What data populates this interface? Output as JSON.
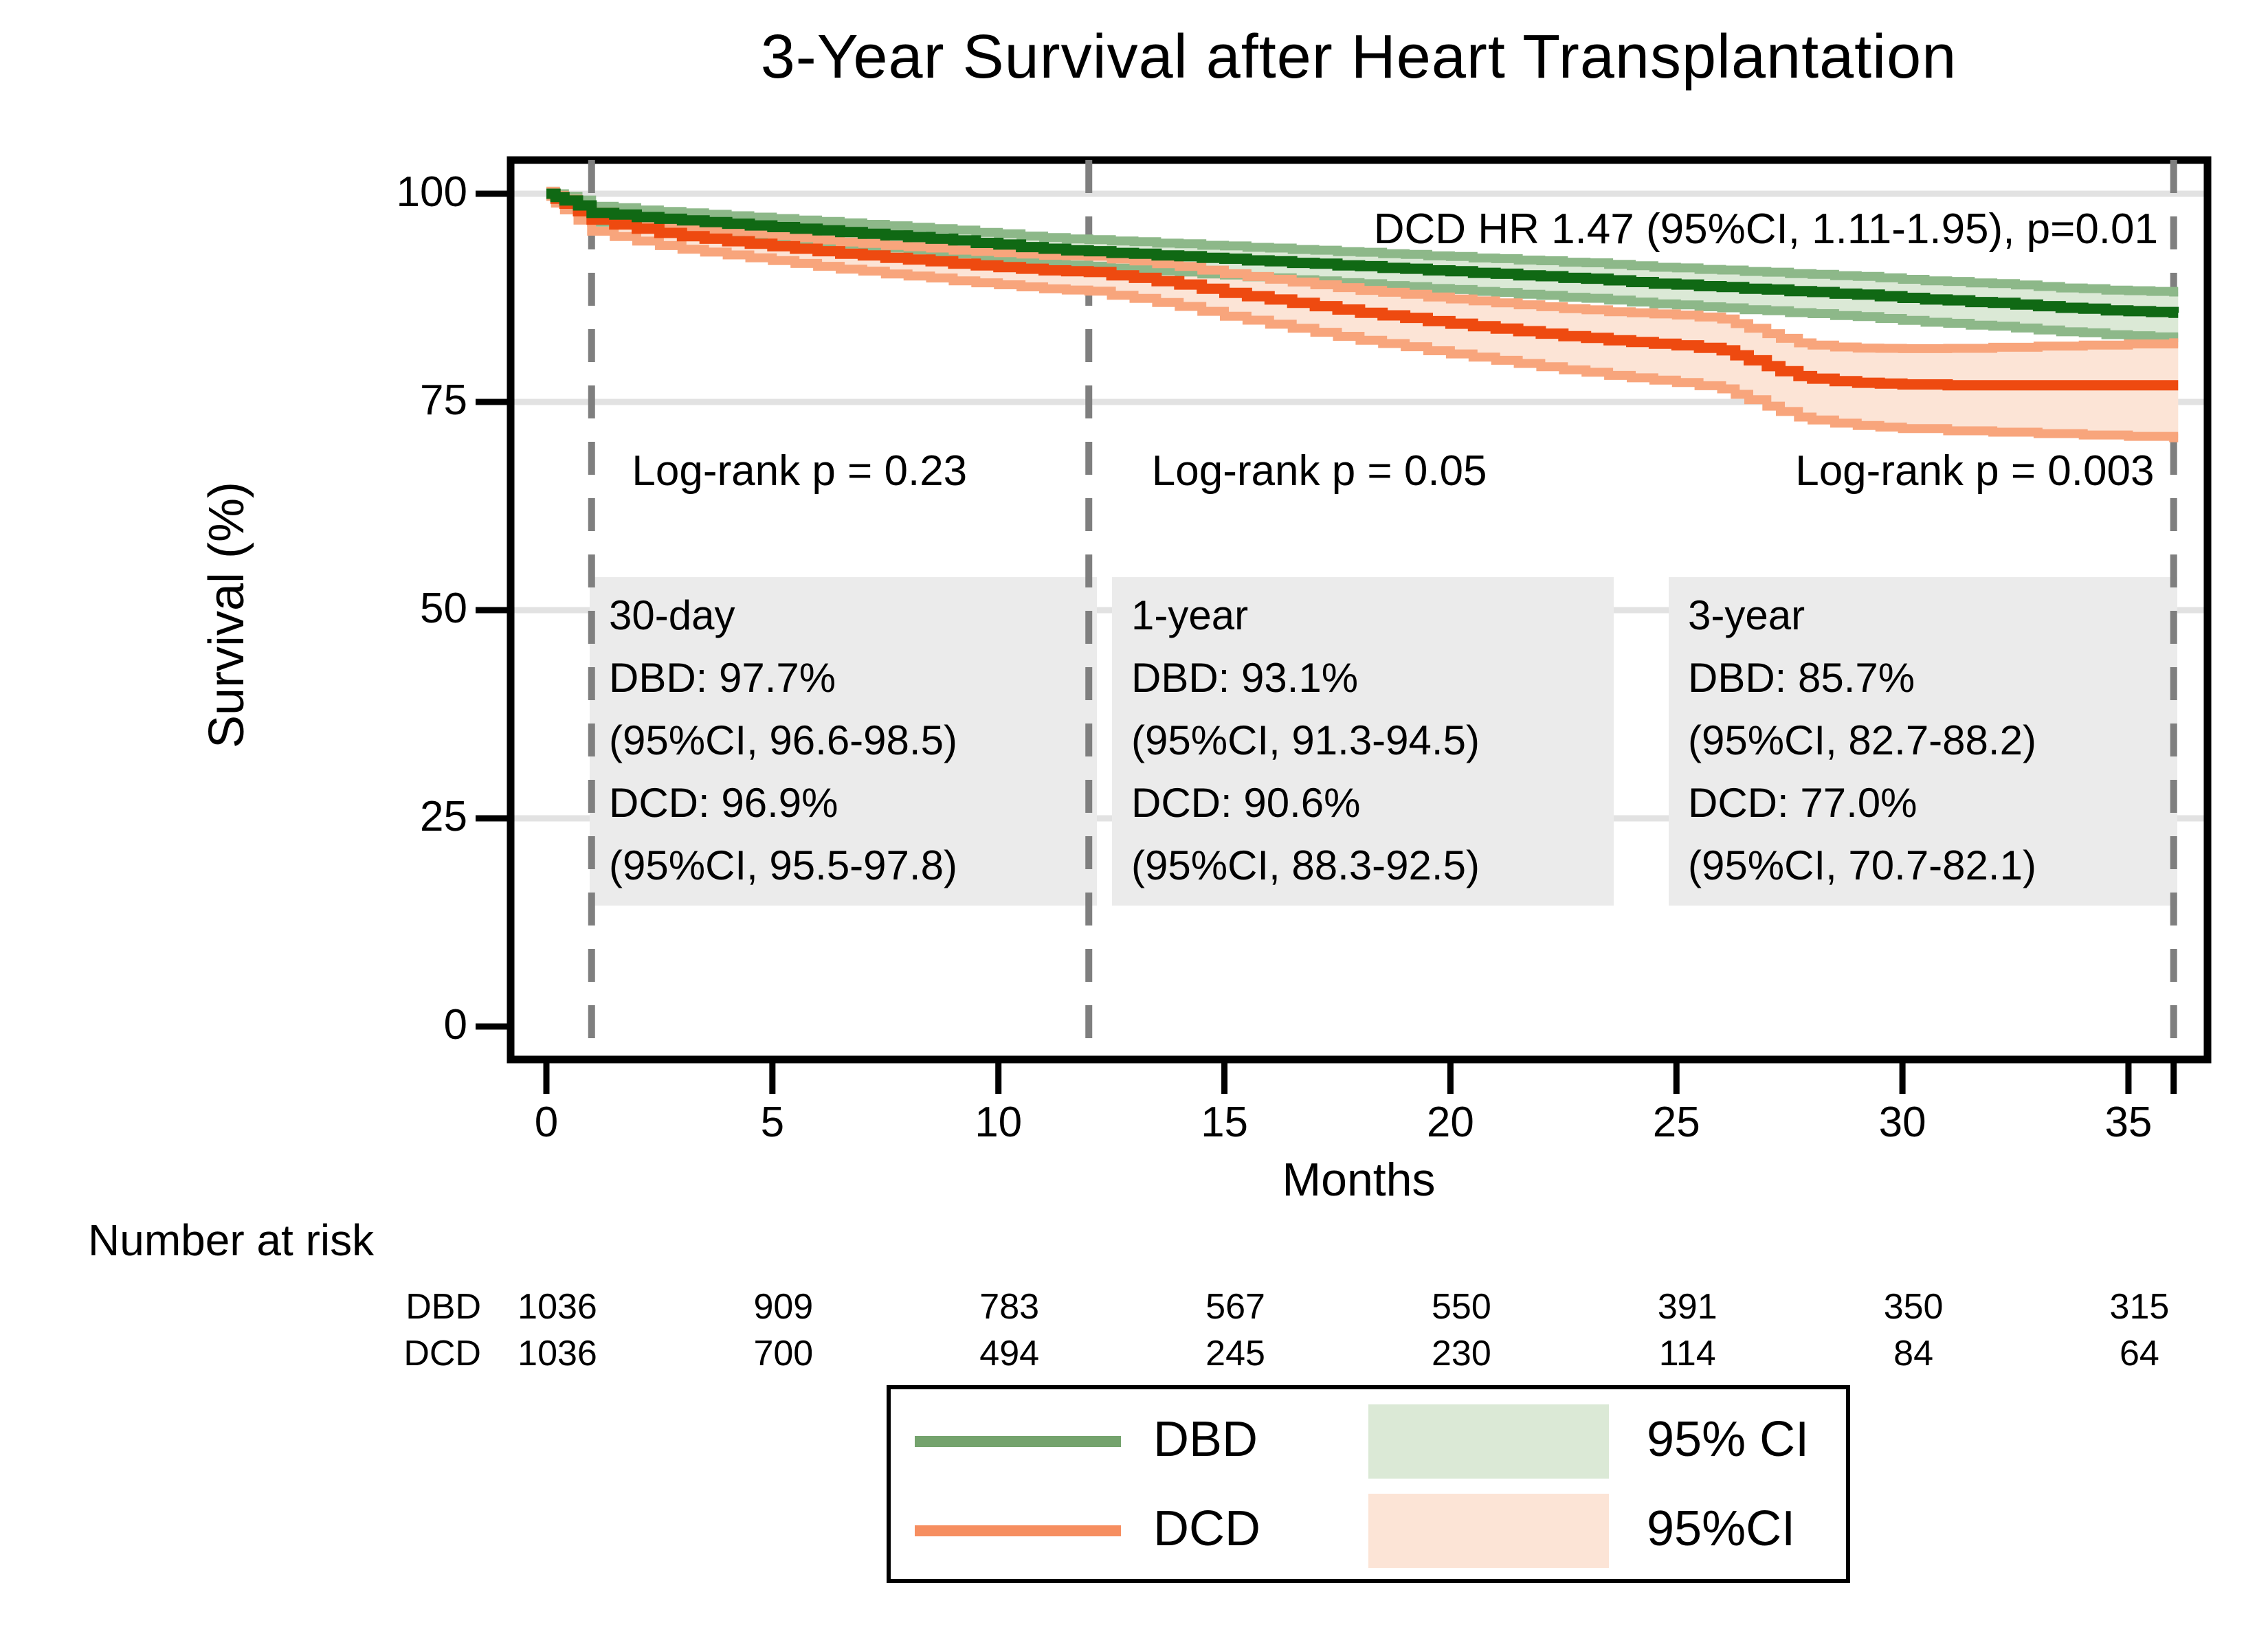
{
  "title": "3-Year Survival after Heart Transplantation",
  "hr_annotation": "DCD HR 1.47 (95%CI, 1.11-1.95), p=0.01",
  "log_rank_labels": [
    {
      "text": "Log-rank p = 0.23",
      "month_center": 5.6
    },
    {
      "text": "Log-rank p = 0.05",
      "month_center": 17.1
    },
    {
      "text": "Log-rank p = 0.003",
      "month_center": 31.6
    }
  ],
  "stat_boxes": [
    {
      "heading": "30-day",
      "lines": [
        "DBD: 97.7%",
        "(95%CI, 96.6-98.5)",
        "DCD: 96.9%",
        "(95%CI, 95.5-97.8)"
      ]
    },
    {
      "heading": "1-year",
      "lines": [
        "DBD: 93.1%",
        "(95%CI, 91.3-94.5)",
        "DCD: 90.6%",
        "(95%CI, 88.3-92.5)"
      ]
    },
    {
      "heading": "3-year",
      "lines": [
        "DBD: 85.7%",
        "(95%CI, 82.7-88.2)",
        "DCD: 77.0%",
        "(95%CI, 70.7-82.1)"
      ]
    }
  ],
  "axes": {
    "y_label": "Survival (%)",
    "y_ticks": [
      100,
      75,
      50,
      25,
      0
    ],
    "x_label": "Months",
    "x_ticks": [
      0,
      5,
      10,
      15,
      20,
      25,
      30,
      35
    ],
    "extra_unlabeled_x_tick": 36,
    "grid_y_values": [
      100,
      75,
      50,
      25
    ]
  },
  "dashed_reference_months": [
    1,
    12,
    36
  ],
  "number_at_risk": {
    "heading": "Number at risk",
    "rows": [
      {
        "label": "DBD",
        "values": [
          "1036",
          "909",
          "783",
          "567",
          "550",
          "391",
          "350",
          "315"
        ]
      },
      {
        "label": "DCD",
        "values": [
          "1036",
          "700",
          "494",
          "245",
          "230",
          "114",
          "84",
          "64"
        ]
      }
    ]
  },
  "legend": {
    "rows": [
      {
        "series_label": "DBD",
        "line_color": "#74a36d",
        "ci_label": "95% CI",
        "ci_fill": "#dbe9d6"
      },
      {
        "series_label": "DCD",
        "line_color": "#f68e60",
        "ci_label": "95%CI",
        "ci_fill": "#fce4d6"
      }
    ]
  },
  "colors": {
    "dbd_line": "#106914",
    "dbd_ci_edge": "#8db889",
    "dbd_ci_fill": "#dbe9d6",
    "dcd_line": "#ee4a10",
    "dcd_ci_edge": "#f8a57c",
    "dcd_ci_fill": "#fce4d6",
    "gridline": "#e2e2e2",
    "dashed_line": "#7f7f7f",
    "stat_box_bg": "#ebebeb",
    "frame": "#000000"
  },
  "chart_data": {
    "type": "line",
    "subtype": "kaplan-meier-step",
    "title": "3-Year Survival after Heart Transplantation",
    "xlabel": "Months",
    "ylabel": "Survival (%)",
    "xlim": [
      -0.8,
      36.75
    ],
    "ylim": [
      -4.3,
      104.1
    ],
    "grid": "horizontal",
    "legend_position": "bottom",
    "series": [
      {
        "name": "DBD",
        "points": [
          [
            0,
            100
          ],
          [
            0.2,
            99.6
          ],
          [
            0.4,
            99.2
          ],
          [
            0.7,
            98.6
          ],
          [
            1,
            97.7
          ],
          [
            1.5,
            97.5
          ],
          [
            2,
            97.2
          ],
          [
            2.5,
            97.0
          ],
          [
            3,
            96.8
          ],
          [
            3.5,
            96.6
          ],
          [
            4,
            96.4
          ],
          [
            4.5,
            96.2
          ],
          [
            5,
            96.0
          ],
          [
            5.5,
            95.8
          ],
          [
            6,
            95.6
          ],
          [
            6.5,
            95.4
          ],
          [
            7,
            95.2
          ],
          [
            7.5,
            95.0
          ],
          [
            8,
            94.8
          ],
          [
            8.5,
            94.6
          ],
          [
            9,
            94.4
          ],
          [
            9.5,
            94.1
          ],
          [
            10,
            93.9
          ],
          [
            10.5,
            93.6
          ],
          [
            11,
            93.4
          ],
          [
            11.5,
            93.2
          ],
          [
            12,
            93.1
          ],
          [
            12.5,
            92.9
          ],
          [
            13,
            92.8
          ],
          [
            13.5,
            92.6
          ],
          [
            14,
            92.5
          ],
          [
            14.5,
            92.3
          ],
          [
            15,
            92.2
          ],
          [
            15.5,
            92.0
          ],
          [
            16,
            91.9
          ],
          [
            16.5,
            91.7
          ],
          [
            17,
            91.6
          ],
          [
            17.5,
            91.4
          ],
          [
            18,
            91.3
          ],
          [
            18.5,
            91.1
          ],
          [
            19,
            91.0
          ],
          [
            19.5,
            90.8
          ],
          [
            20,
            90.7
          ],
          [
            20.5,
            90.5
          ],
          [
            21,
            90.4
          ],
          [
            21.5,
            90.2
          ],
          [
            22,
            90.1
          ],
          [
            22.5,
            89.9
          ],
          [
            23,
            89.8
          ],
          [
            23.5,
            89.6
          ],
          [
            24,
            89.4
          ],
          [
            24.5,
            89.2
          ],
          [
            25,
            89.1
          ],
          [
            25.5,
            88.9
          ],
          [
            26,
            88.8
          ],
          [
            26.5,
            88.6
          ],
          [
            27,
            88.5
          ],
          [
            27.5,
            88.3
          ],
          [
            28,
            88.2
          ],
          [
            28.5,
            88.0
          ],
          [
            29,
            87.9
          ],
          [
            29.5,
            87.7
          ],
          [
            30,
            87.5
          ],
          [
            30.5,
            87.3
          ],
          [
            31,
            87.2
          ],
          [
            31.5,
            87.0
          ],
          [
            32,
            86.9
          ],
          [
            32.5,
            86.7
          ],
          [
            33,
            86.5
          ],
          [
            33.5,
            86.3
          ],
          [
            34,
            86.2
          ],
          [
            34.5,
            86.0
          ],
          [
            35,
            85.9
          ],
          [
            35.5,
            85.8
          ],
          [
            36,
            85.7
          ],
          [
            36.1,
            85.7
          ]
        ],
        "ci_offset_anchors": [
          [
            0,
            0.3,
            0.3
          ],
          [
            1,
            0.8,
            1.1
          ],
          [
            12,
            1.4,
            1.8
          ],
          [
            36,
            2.5,
            3.0
          ]
        ],
        "milestones": {
          "30_day": "97.7 (96.6-98.5)",
          "1_year": "93.1 (91.3-94.5)",
          "3_year": "85.7 (82.7-88.2)"
        }
      },
      {
        "name": "DCD",
        "points": [
          [
            0,
            100
          ],
          [
            0.2,
            99.4
          ],
          [
            0.4,
            98.8
          ],
          [
            0.7,
            97.9
          ],
          [
            1,
            96.9
          ],
          [
            1.5,
            96.3
          ],
          [
            2,
            95.8
          ],
          [
            2.5,
            95.3
          ],
          [
            3,
            94.9
          ],
          [
            3.5,
            94.6
          ],
          [
            4,
            94.3
          ],
          [
            4.5,
            94.0
          ],
          [
            5,
            93.7
          ],
          [
            5.5,
            93.4
          ],
          [
            6,
            93.1
          ],
          [
            6.5,
            92.8
          ],
          [
            7,
            92.6
          ],
          [
            7.5,
            92.3
          ],
          [
            8,
            92.1
          ],
          [
            8.5,
            91.9
          ],
          [
            9,
            91.6
          ],
          [
            9.5,
            91.4
          ],
          [
            10,
            91.2
          ],
          [
            10.5,
            91.0
          ],
          [
            11,
            90.8
          ],
          [
            11.5,
            90.7
          ],
          [
            12,
            90.6
          ],
          [
            12.5,
            90.2
          ],
          [
            13,
            89.9
          ],
          [
            13.5,
            89.5
          ],
          [
            14,
            89.1
          ],
          [
            14.5,
            88.6
          ],
          [
            15,
            88.1
          ],
          [
            15.5,
            87.7
          ],
          [
            16,
            87.3
          ],
          [
            16.5,
            86.9
          ],
          [
            17,
            86.5
          ],
          [
            17.5,
            86.1
          ],
          [
            18,
            85.7
          ],
          [
            18.5,
            85.4
          ],
          [
            19,
            85.1
          ],
          [
            19.5,
            84.7
          ],
          [
            20,
            84.4
          ],
          [
            20.5,
            84.1
          ],
          [
            21,
            83.8
          ],
          [
            21.5,
            83.5
          ],
          [
            22,
            83.2
          ],
          [
            22.5,
            82.9
          ],
          [
            23,
            82.7
          ],
          [
            23.5,
            82.4
          ],
          [
            24,
            82.2
          ],
          [
            24.5,
            82.0
          ],
          [
            25,
            81.8
          ],
          [
            25.5,
            81.5
          ],
          [
            26,
            81.2
          ],
          [
            26.3,
            80.6
          ],
          [
            26.6,
            80.0
          ],
          [
            27,
            79.3
          ],
          [
            27.3,
            78.7
          ],
          [
            27.7,
            78.1
          ],
          [
            28,
            77.8
          ],
          [
            28.5,
            77.5
          ],
          [
            29,
            77.3
          ],
          [
            29.5,
            77.2
          ],
          [
            30,
            77.1
          ],
          [
            31,
            77.0
          ],
          [
            32,
            77.0
          ],
          [
            33,
            77.0
          ],
          [
            34,
            77.0
          ],
          [
            35,
            77.0
          ],
          [
            36,
            77.0
          ],
          [
            36.1,
            77.0
          ]
        ],
        "ci_offset_anchors": [
          [
            0,
            0.3,
            0.3
          ],
          [
            1,
            0.9,
            1.4
          ],
          [
            12,
            1.9,
            2.3
          ],
          [
            36,
            5.1,
            6.3
          ]
        ],
        "milestones": {
          "30_day": "96.9 (95.5-97.8)",
          "1_year": "90.6 (88.3-92.5)",
          "3_year": "77.0 (70.7-82.1)"
        }
      }
    ]
  }
}
